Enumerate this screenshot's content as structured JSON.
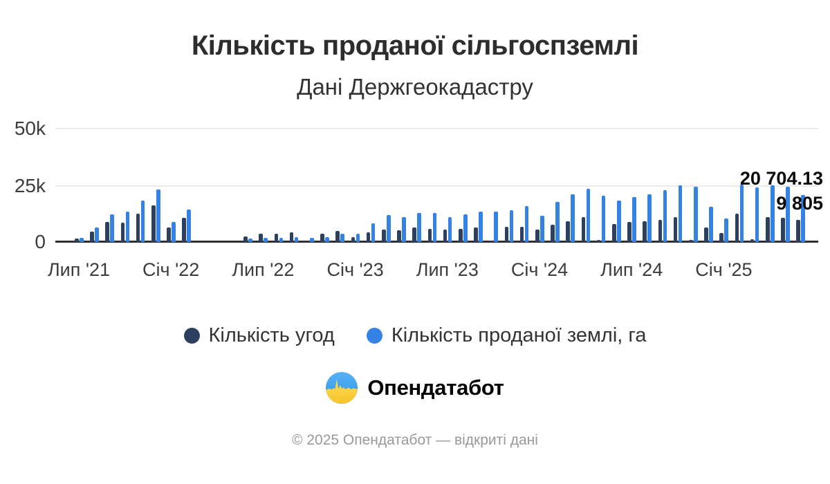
{
  "header": {
    "title": "Кількість проданої сільгоспземлі",
    "subtitle": "Дані Держгеокадастру"
  },
  "chart_data": {
    "type": "bar",
    "title": "Кількість проданої сільгоспземлі",
    "subtitle": "Дані Держгеокадастру",
    "grid": "horizontal",
    "legend_position": "bottom",
    "ylim": [
      0,
      50000
    ],
    "y_ticks": [
      "0",
      "25k",
      "50k"
    ],
    "categories": [
      "2021-07",
      "2021-08",
      "2021-09",
      "2021-10",
      "2021-11",
      "2021-12",
      "2022-01",
      "2022-02",
      "2022-03",
      "2022-04",
      "2022-05",
      "2022-06",
      "2022-07",
      "2022-08",
      "2022-09",
      "2022-10",
      "2022-11",
      "2022-12",
      "2023-01",
      "2023-02",
      "2023-03",
      "2023-04",
      "2023-05",
      "2023-06",
      "2023-07",
      "2023-08",
      "2023-09",
      "2023-10",
      "2023-11",
      "2023-12",
      "2024-01",
      "2024-02",
      "2024-03",
      "2024-04",
      "2024-05",
      "2024-06",
      "2024-07",
      "2024-08",
      "2024-09",
      "2024-10",
      "2024-11",
      "2024-12",
      "2025-01",
      "2025-02",
      "2025-03",
      "2025-04",
      "2025-05",
      "2025-06"
    ],
    "x_tick_labels": [
      {
        "index": 0,
        "label": "Лип '21"
      },
      {
        "index": 6,
        "label": "Січ '22"
      },
      {
        "index": 12,
        "label": "Лип '22"
      },
      {
        "index": 18,
        "label": "Січ '23"
      },
      {
        "index": 24,
        "label": "Лип '23"
      },
      {
        "index": 30,
        "label": "Січ '24"
      },
      {
        "index": 36,
        "label": "Лип '24"
      },
      {
        "index": 42,
        "label": "Січ '25"
      }
    ],
    "series": [
      {
        "name": "Кількість угод",
        "color": "#2e4060",
        "values": [
          1600,
          4600,
          8700,
          8600,
          12500,
          16200,
          6300,
          10500,
          0,
          0,
          0,
          2300,
          3500,
          3500,
          4100,
          400,
          3700,
          4800,
          2100,
          4300,
          5600,
          5300,
          6300,
          5900,
          5400,
          5900,
          6400,
          200,
          6600,
          6600,
          5400,
          7600,
          9200,
          10800,
          1000,
          8000,
          8700,
          9200,
          9800,
          11000,
          900,
          6500,
          3800,
          12400,
          1300,
          11000,
          10500,
          9805
        ]
      },
      {
        "name": "Кількість проданої землі, га",
        "color": "#3483e4",
        "values": [
          1900,
          6400,
          12100,
          13200,
          18100,
          22900,
          8700,
          14300,
          0,
          0,
          0,
          1600,
          1900,
          1800,
          2200,
          1700,
          2000,
          3500,
          3700,
          8300,
          11900,
          10900,
          12600,
          12600,
          11000,
          12000,
          13400,
          13200,
          13900,
          15700,
          11500,
          17700,
          20800,
          23400,
          20300,
          18300,
          19600,
          20900,
          22600,
          24900,
          24300,
          15400,
          10200,
          25100,
          24000,
          25000,
          24200,
          20704.13
        ]
      }
    ],
    "end_labels": [
      {
        "series": "Кількість проданої землі, га",
        "text": "20 704.13",
        "value": 20704.13
      },
      {
        "series": "Кількість угод",
        "text": "9 805",
        "value": 9805
      }
    ]
  },
  "legend": {
    "items": [
      {
        "label": "Кількість угод",
        "color": "#2e4060"
      },
      {
        "label": "Кількість проданої землі, га",
        "color": "#3483e4"
      }
    ]
  },
  "branding": {
    "logo_text": "Опендатабот",
    "logo_colors": {
      "blue": "#3fa3ee",
      "yellow": "#ffd43d"
    }
  },
  "footer": {
    "text": "© 2025 Опендатабот — відкриті дані"
  }
}
